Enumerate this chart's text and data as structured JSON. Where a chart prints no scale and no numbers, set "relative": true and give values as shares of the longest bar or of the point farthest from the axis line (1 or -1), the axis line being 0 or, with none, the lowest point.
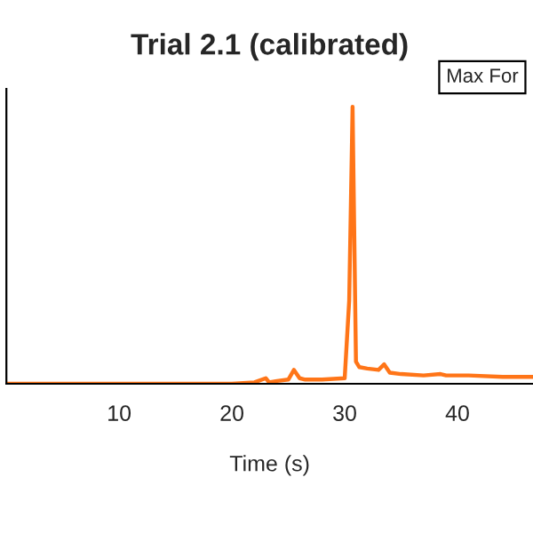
{
  "chart_data": {
    "type": "line",
    "title": "Trial 2.1 (calibrated)",
    "xlabel": "Time (s)",
    "relative": true,
    "annotations": [
      "Max For"
    ],
    "x": [
      0,
      5,
      10,
      15,
      20,
      22,
      23,
      23.3,
      24,
      25,
      25.5,
      26,
      26.5,
      28,
      30,
      30.4,
      30.7,
      31,
      31.3,
      32,
      33,
      33.5,
      34,
      35,
      37,
      38.5,
      39,
      41,
      44,
      46.7
    ],
    "series": [
      {
        "color": "#ff7518",
        "values": [
          0,
          0,
          0,
          0,
          0,
          0.005,
          0.02,
          0.005,
          0.01,
          0.015,
          0.05,
          0.02,
          0.015,
          0.015,
          0.02,
          0.3,
          1,
          0.08,
          0.06,
          0.055,
          0.05,
          0.07,
          0.04,
          0.035,
          0.03,
          0.035,
          0.03,
          0.03,
          0.025,
          0.025
        ]
      }
    ],
    "xlim": [
      0,
      46.7
    ],
    "xticks": [
      10,
      20,
      30,
      40
    ],
    "grid": false,
    "legend": false
  }
}
